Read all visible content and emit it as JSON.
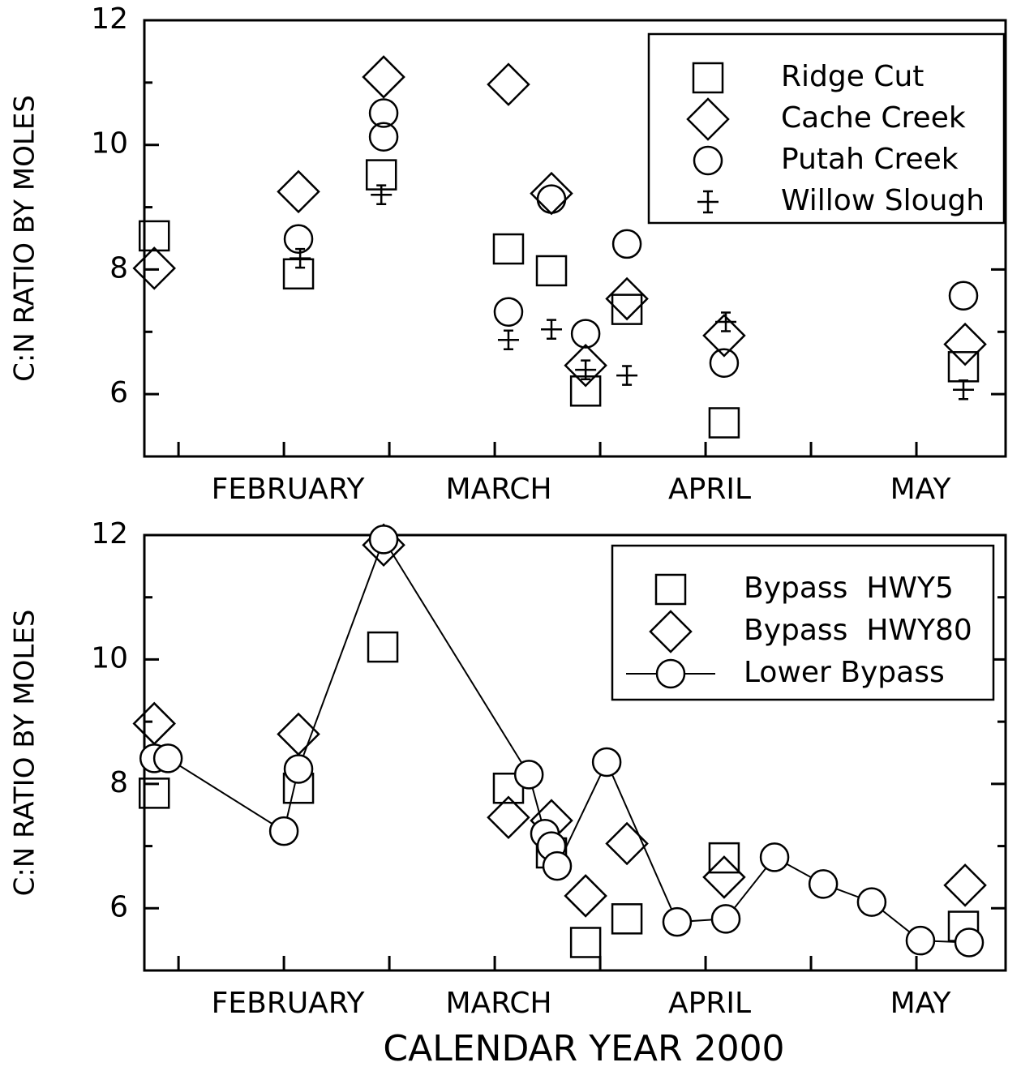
{
  "chart_data": [
    {
      "type": "scatter",
      "ylabel": "C:N RATIO BY MOLES",
      "xlim": [
        1.338,
        5.423
      ],
      "xticks": [
        {
          "value": 2,
          "label": "FEBRUARY"
        },
        {
          "value": 3,
          "label": "MARCH"
        },
        {
          "value": 4,
          "label": "APRIL"
        },
        {
          "value": 5,
          "label": "MAY"
        }
      ],
      "xminorticks": [
        1.5,
        2.5,
        3.5,
        4.5
      ],
      "ylim": [
        5,
        12
      ],
      "yticks": [
        6,
        8,
        10,
        12
      ],
      "yminorticks": [
        7,
        9,
        11
      ],
      "legend": "upper right",
      "series": [
        {
          "name": "Ridge Cut",
          "marker": "square",
          "color": "#000000",
          "x": [
            1.385,
            2.069,
            2.462,
            3.065,
            3.269,
            3.431,
            3.627,
            4.088,
            5.223
          ],
          "values": [
            8.54,
            7.93,
            9.52,
            8.33,
            7.98,
            6.05,
            7.36,
            5.54,
            6.44
          ]
        },
        {
          "name": "Cache Creek",
          "marker": "diamond",
          "color": "#000000",
          "x": [
            1.385,
            2.069,
            2.473,
            3.065,
            3.269,
            3.431,
            3.627,
            4.088,
            5.231
          ],
          "values": [
            8.02,
            9.25,
            11.09,
            10.97,
            9.22,
            6.46,
            7.53,
            6.94,
            6.8
          ]
        },
        {
          "name": "Putah Creek",
          "marker": "circle",
          "color": "#000000",
          "x": [
            2.069,
            2.473,
            2.473,
            3.065,
            3.269,
            3.431,
            3.627,
            4.088,
            5.223
          ],
          "values": [
            8.49,
            10.51,
            10.13,
            7.32,
            9.13,
            6.97,
            8.41,
            6.5,
            7.58
          ]
        },
        {
          "name": "Willow Slough",
          "marker": "errorbar",
          "color": "#000000",
          "x": [
            2.077,
            2.462,
            3.065,
            3.269,
            3.431,
            3.627,
            4.096,
            5.223
          ],
          "values": [
            8.18,
            9.2,
            6.87,
            7.04,
            6.39,
            6.3,
            7.16,
            6.07
          ],
          "errors": [
            0.15,
            0.15,
            0.15,
            0.15,
            0.15,
            0.15,
            0.15,
            0.15
          ]
        }
      ]
    },
    {
      "type": "scatter",
      "ylabel": "C:N RATIO BY MOLES",
      "xlabel": "CALENDAR YEAR 2000",
      "xlim": [
        1.338,
        5.423
      ],
      "xticks": [
        {
          "value": 2,
          "label": "FEBRUARY"
        },
        {
          "value": 3,
          "label": "MARCH"
        },
        {
          "value": 4,
          "label": "APRIL"
        },
        {
          "value": 5,
          "label": "MAY"
        }
      ],
      "xminorticks": [
        1.5,
        2.5,
        3.5,
        4.5
      ],
      "ylim": [
        5,
        12
      ],
      "yticks": [
        6,
        8,
        10,
        12
      ],
      "yminorticks": [
        7,
        9,
        11
      ],
      "legend": "upper right",
      "series": [
        {
          "name": "Bypass  HWY5",
          "marker": "square",
          "color": "#000000",
          "x": [
            1.385,
            2.069,
            2.469,
            3.065,
            3.269,
            3.431,
            3.627,
            4.088,
            5.223
          ],
          "values": [
            7.85,
            7.93,
            10.2,
            7.93,
            6.89,
            5.45,
            5.83,
            6.81,
            5.71
          ]
        },
        {
          "name": "Bypass  HWY80",
          "marker": "diamond",
          "color": "#000000",
          "x": [
            1.385,
            2.069,
            2.473,
            3.065,
            3.269,
            3.431,
            3.627,
            4.088,
            5.231
          ],
          "values": [
            8.97,
            8.8,
            11.84,
            7.46,
            7.41,
            6.2,
            7.04,
            6.5,
            6.37
          ]
        },
        {
          "name": "Lower Bypass",
          "marker": "circle",
          "line": true,
          "color": "#000000",
          "x": [
            1.385,
            1.45,
            2.0,
            2.069,
            2.473,
            3.162,
            3.238,
            3.269,
            3.296,
            3.531,
            3.865,
            4.096,
            4.327,
            4.558,
            4.788,
            5.019,
            5.25
          ],
          "values": [
            8.41,
            8.41,
            7.24,
            8.24,
            11.93,
            8.15,
            7.2,
            7.0,
            6.68,
            8.35,
            5.78,
            5.83,
            6.82,
            6.39,
            6.1,
            5.48,
            5.45
          ]
        }
      ]
    }
  ]
}
